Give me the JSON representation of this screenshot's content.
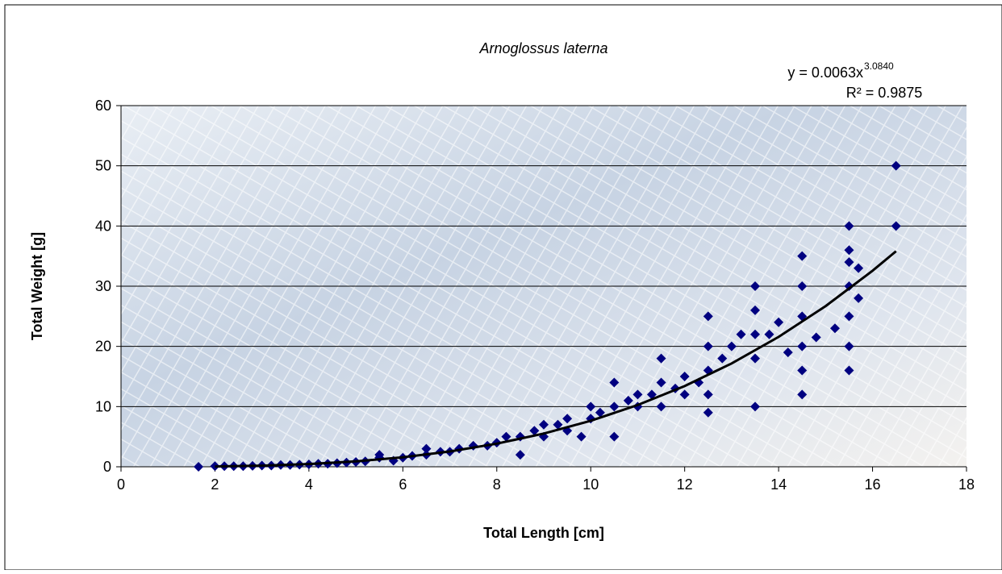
{
  "chart_data": {
    "type": "scatter",
    "title": "Arnoglossus laterna",
    "x_label": "Total Length [cm]",
    "y_label": "Total Weight [g]",
    "xlim": [
      0,
      18
    ],
    "xticks": [
      0,
      2,
      4,
      6,
      8,
      10,
      12,
      14,
      16,
      18
    ],
    "ylim": [
      0,
      60
    ],
    "yticks": [
      0,
      10,
      20,
      30,
      40,
      50,
      60
    ],
    "grid": true,
    "series": [
      {
        "color": "#000080",
        "x": [
          1.65,
          2.0,
          2.2,
          2.4,
          2.6,
          2.8,
          3.0,
          3.2,
          3.4,
          3.6,
          3.8,
          4.0,
          4.2,
          4.4,
          4.6,
          4.8,
          5.0,
          5.2,
          5.5,
          5.5,
          5.8,
          6.0,
          6.2,
          6.5,
          6.5,
          6.8,
          7.0,
          7.2,
          7.5,
          7.8,
          8.0,
          8.2,
          8.5,
          8.5,
          8.8,
          9.0,
          9.0,
          9.3,
          9.5,
          9.5,
          9.8,
          10.0,
          10.0,
          10.2,
          10.5,
          10.5,
          10.5,
          10.8,
          11.0,
          11.0,
          11.3,
          11.5,
          11.5,
          11.5,
          11.8,
          12.0,
          12.0,
          12.3,
          12.5,
          12.5,
          12.5,
          12.5,
          12.5,
          12.8,
          13.0,
          13.2,
          13.5,
          13.5,
          13.5,
          13.5,
          13.5,
          13.8,
          14.0,
          14.2,
          14.5,
          14.5,
          14.5,
          14.5,
          14.5,
          14.5,
          14.8,
          15.2,
          15.5,
          15.5,
          15.5,
          15.5,
          15.5,
          15.5,
          15.5,
          15.7,
          15.7,
          16.5,
          16.5
        ],
        "values": [
          0,
          0.1,
          0.1,
          0.1,
          0.1,
          0.15,
          0.2,
          0.2,
          0.3,
          0.3,
          0.35,
          0.4,
          0.5,
          0.5,
          0.6,
          0.7,
          0.8,
          0.9,
          1.5,
          2,
          1,
          1.5,
          1.8,
          2,
          3,
          2.5,
          2.5,
          3,
          3.5,
          3.5,
          4,
          5,
          2,
          5,
          6,
          5,
          7,
          7,
          6,
          8,
          5,
          8,
          10,
          9,
          5,
          10,
          14,
          11,
          10,
          12,
          12,
          10,
          14,
          18,
          13,
          12,
          15,
          14,
          9,
          12,
          16,
          20,
          25,
          18,
          20,
          22,
          10,
          18,
          22,
          26,
          30,
          22,
          24,
          19,
          12,
          16,
          20,
          25,
          30,
          35,
          21.5,
          23,
          16,
          20,
          25,
          30,
          34,
          36,
          40,
          28,
          33,
          40,
          50
        ]
      }
    ],
    "trendline": {
      "color": "#000000",
      "x": [
        2,
        3,
        4,
        5,
        6,
        7,
        8,
        9,
        10,
        11,
        12,
        13,
        14,
        15,
        16,
        16.5
      ],
      "values": [
        0.053,
        0.187,
        0.453,
        0.9,
        1.58,
        2.54,
        3.84,
        5.52,
        7.64,
        10.26,
        13.41,
        17.17,
        21.58,
        26.69,
        32.57,
        35.81
      ]
    },
    "equation": "y = 0.0063x",
    "equation_exponent": "3.0840",
    "r_squared": "R² = 0.9875"
  }
}
